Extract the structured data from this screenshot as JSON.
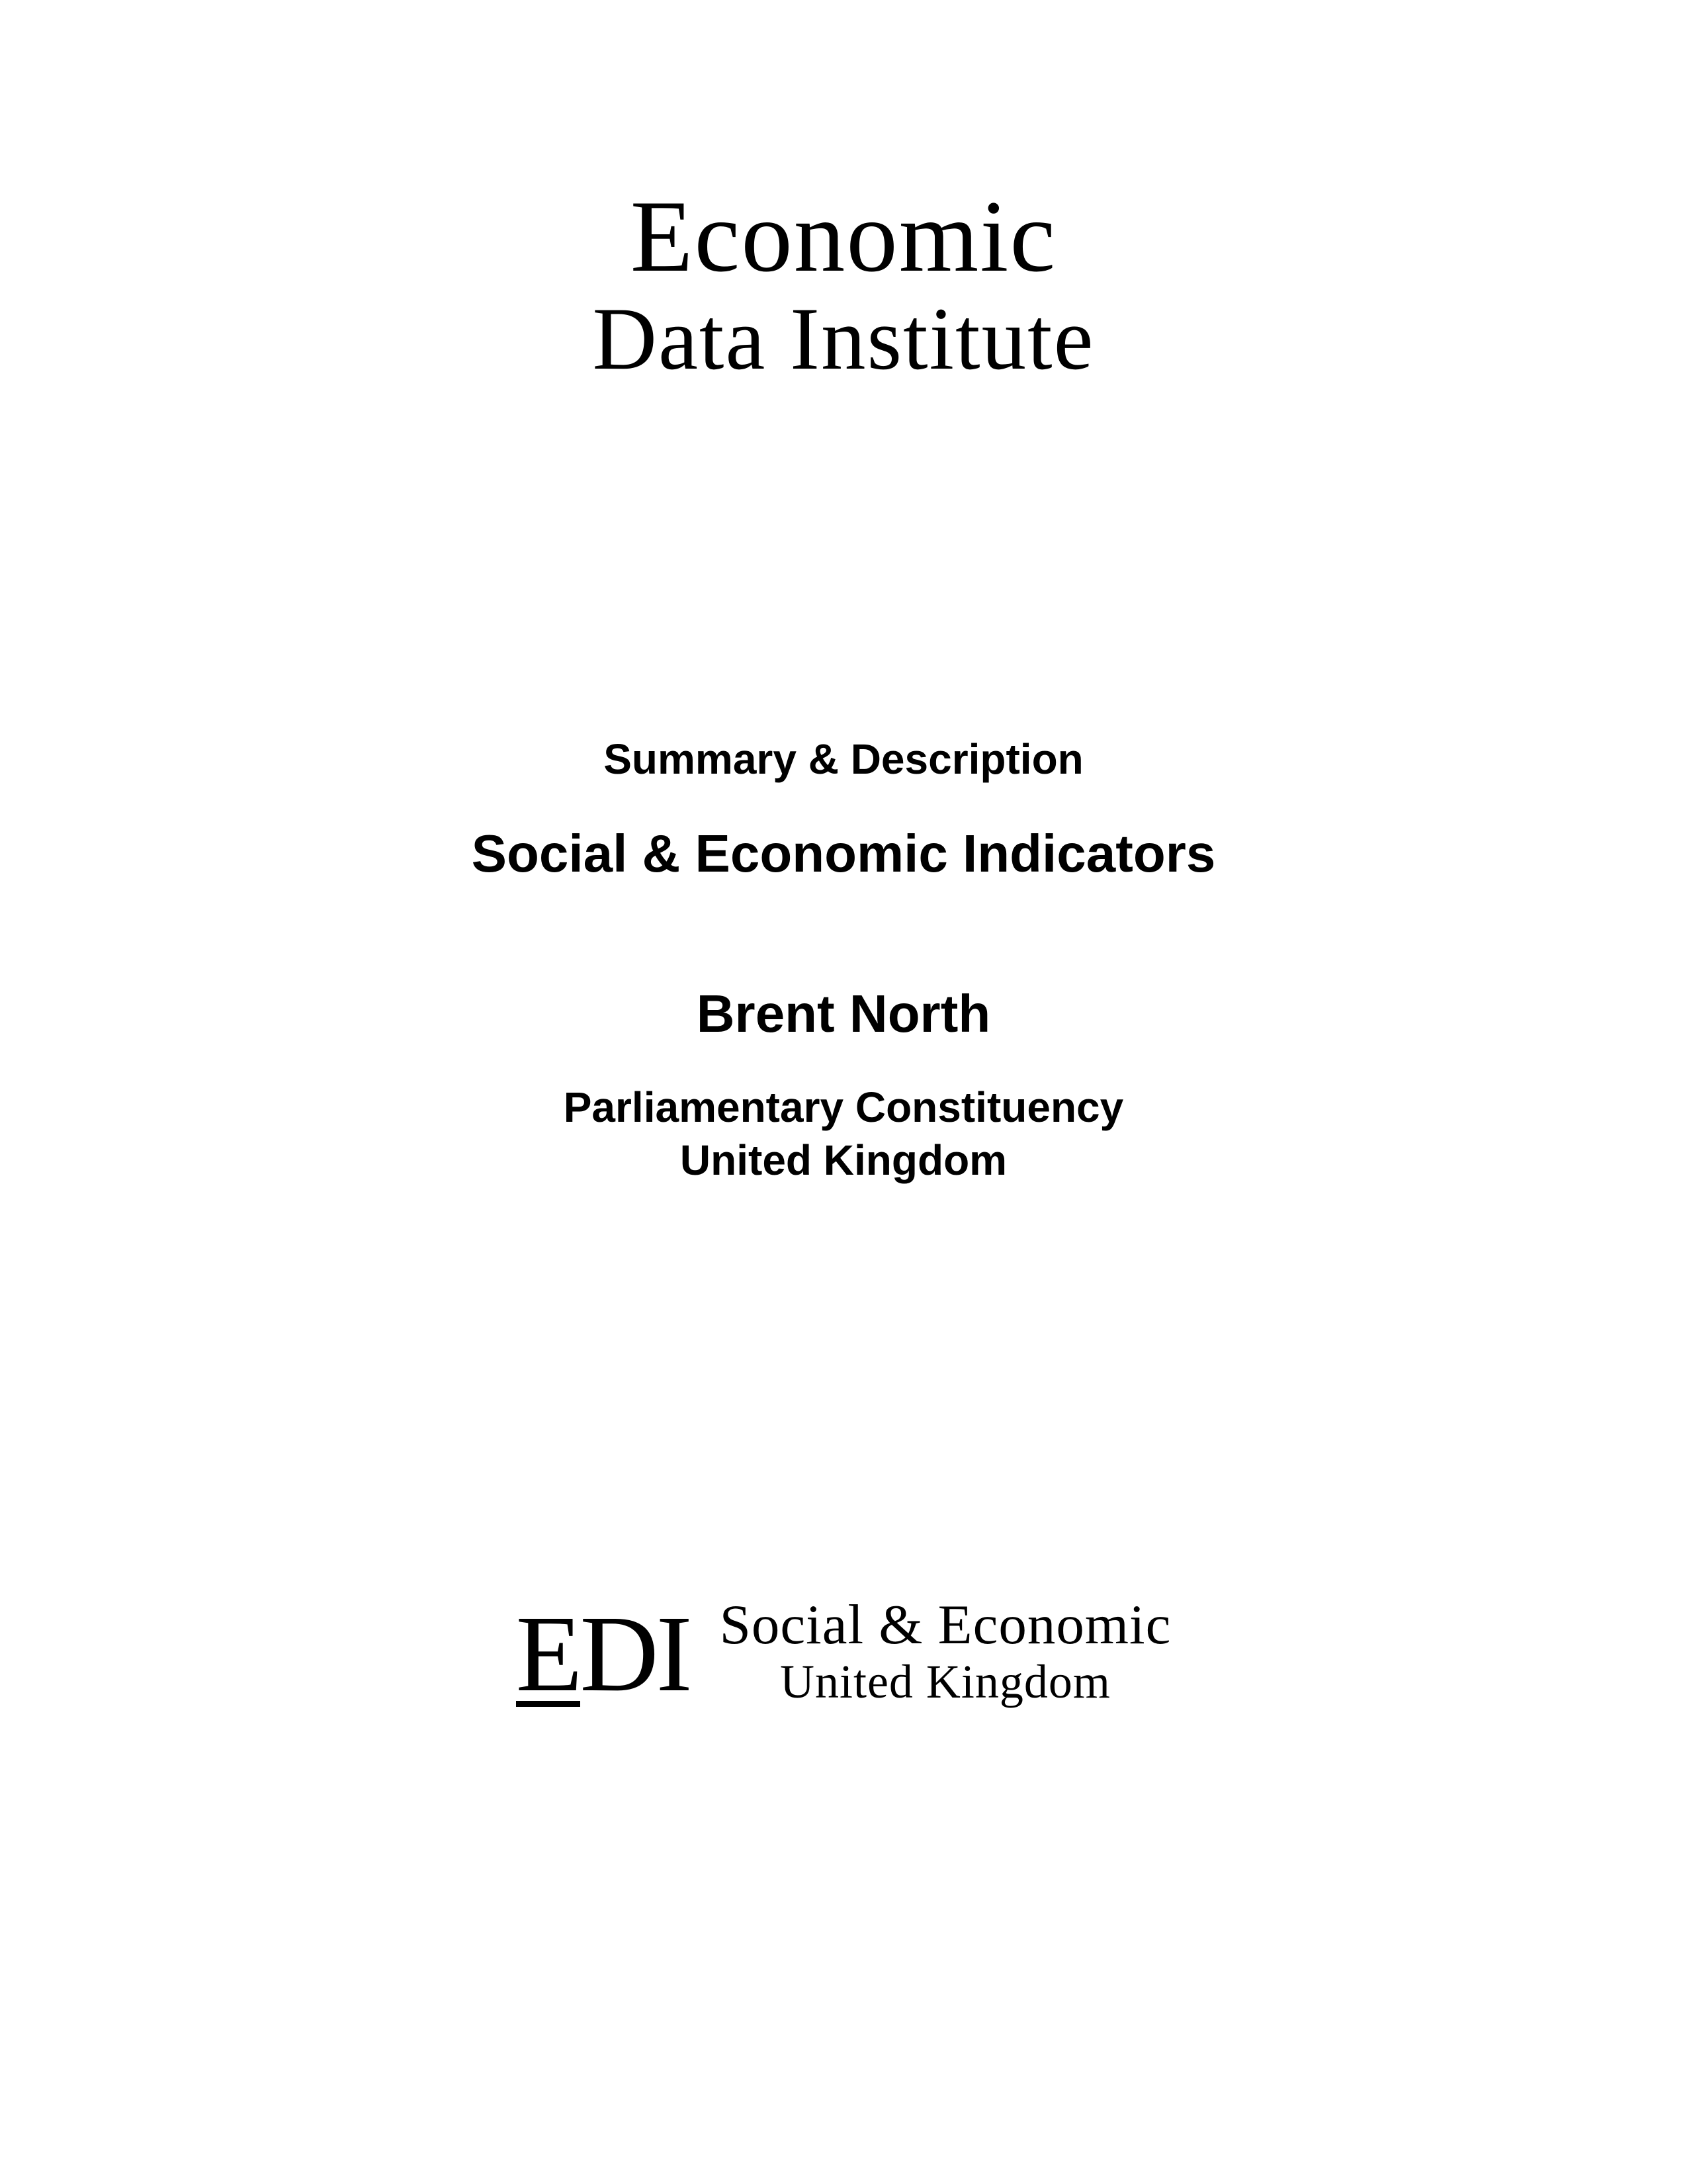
{
  "top_logo": {
    "line1": "Economic",
    "line2": "Data Institute"
  },
  "middle": {
    "summary": "Summary & Description",
    "title": "Social & Economic Indicators",
    "location": "Brent North",
    "constituency_line1": "Parliamentary Constituency",
    "constituency_line2": "United Kingdom"
  },
  "bottom_logo": {
    "mark_first": "E",
    "mark_rest": "DI",
    "text_line1": "Social & Economic",
    "text_line2": "United Kingdom"
  },
  "colors": {
    "background": "#ffffff",
    "text": "#000000"
  }
}
